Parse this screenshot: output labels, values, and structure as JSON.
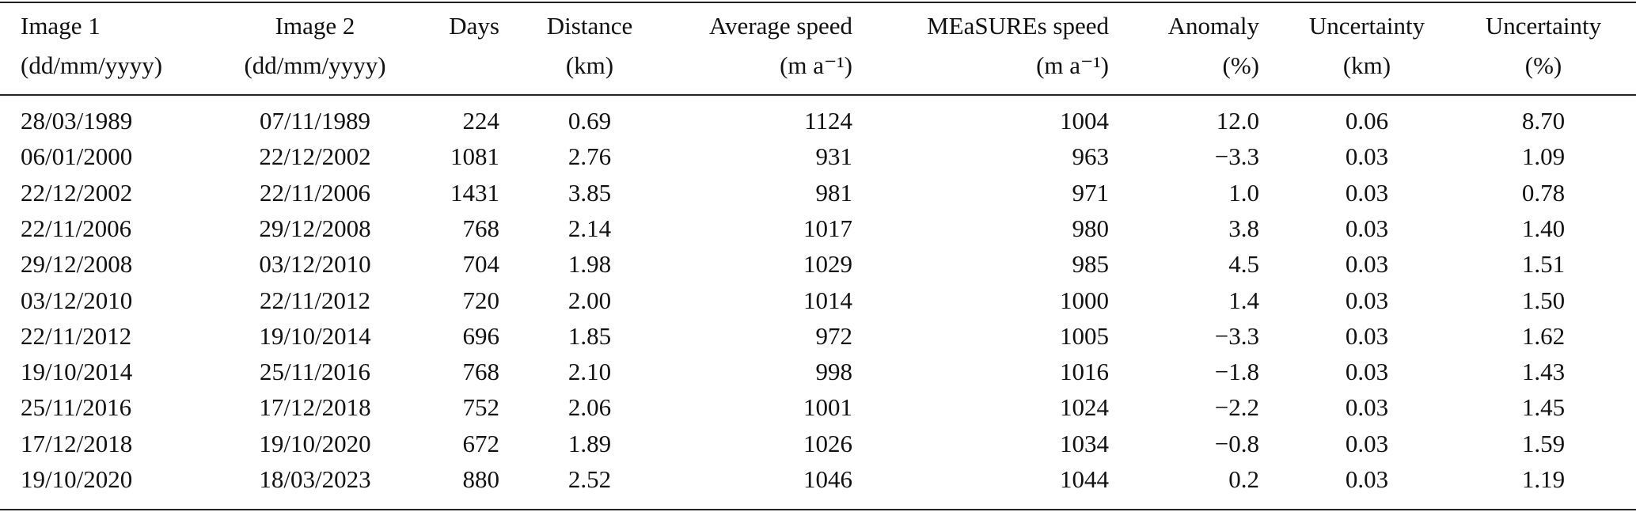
{
  "table": {
    "columns": [
      {
        "header": [
          "Image 1",
          "(dd/mm/yyyy)"
        ]
      },
      {
        "header": [
          "Image 2",
          "(dd/mm/yyyy)"
        ]
      },
      {
        "header": [
          "Days"
        ]
      },
      {
        "header": [
          "Distance",
          "(km)"
        ]
      },
      {
        "header": [
          "Average speed",
          "(m a⁻¹)"
        ]
      },
      {
        "header": [
          "MEaSUREs speed",
          "(m a⁻¹)"
        ]
      },
      {
        "header": [
          "Anomaly",
          "(%)"
        ]
      },
      {
        "header": [
          "Uncertainty",
          "(km)"
        ]
      },
      {
        "header": [
          "Uncertainty",
          "(%)"
        ]
      }
    ],
    "rows": [
      [
        "28/03/1989",
        "07/11/1989",
        "224",
        "0.69",
        "1124",
        "1004",
        "12.0",
        "0.06",
        "8.70"
      ],
      [
        "06/01/2000",
        "22/12/2002",
        "1081",
        "2.76",
        "931",
        "963",
        "−3.3",
        "0.03",
        "1.09"
      ],
      [
        "22/12/2002",
        "22/11/2006",
        "1431",
        "3.85",
        "981",
        "971",
        "1.0",
        "0.03",
        "0.78"
      ],
      [
        "22/11/2006",
        "29/12/2008",
        "768",
        "2.14",
        "1017",
        "980",
        "3.8",
        "0.03",
        "1.40"
      ],
      [
        "29/12/2008",
        "03/12/2010",
        "704",
        "1.98",
        "1029",
        "985",
        "4.5",
        "0.03",
        "1.51"
      ],
      [
        "03/12/2010",
        "22/11/2012",
        "720",
        "2.00",
        "1014",
        "1000",
        "1.4",
        "0.03",
        "1.50"
      ],
      [
        "22/11/2012",
        "19/10/2014",
        "696",
        "1.85",
        "972",
        "1005",
        "−3.3",
        "0.03",
        "1.62"
      ],
      [
        "19/10/2014",
        "25/11/2016",
        "768",
        "2.10",
        "998",
        "1016",
        "−1.8",
        "0.03",
        "1.43"
      ],
      [
        "25/11/2016",
        "17/12/2018",
        "752",
        "2.06",
        "1001",
        "1024",
        "−2.2",
        "0.03",
        "1.45"
      ],
      [
        "17/12/2018",
        "19/10/2020",
        "672",
        "1.89",
        "1026",
        "1034",
        "−0.8",
        "0.03",
        "1.59"
      ],
      [
        "19/10/2020",
        "18/03/2023",
        "880",
        "2.52",
        "1046",
        "1044",
        "0.2",
        "0.03",
        "1.19"
      ]
    ]
  }
}
